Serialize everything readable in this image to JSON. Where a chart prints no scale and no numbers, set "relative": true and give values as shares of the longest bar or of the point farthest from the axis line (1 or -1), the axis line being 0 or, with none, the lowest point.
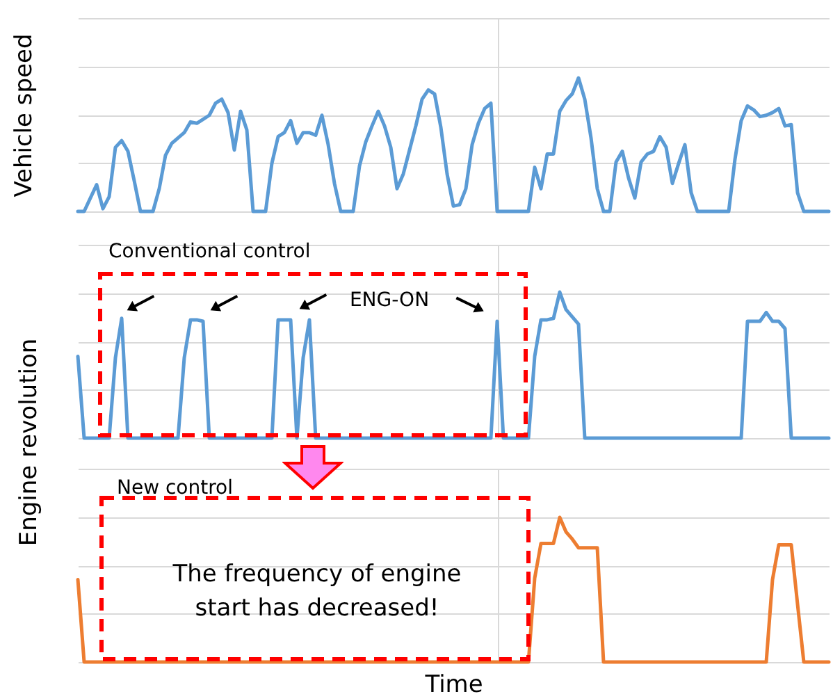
{
  "chart_data": [
    {
      "type": "line",
      "relative": true,
      "ylabel": "Vehicle speed",
      "grid": true,
      "categories": [
        null,
        null,
        null,
        null,
        null,
        null,
        null,
        null,
        null,
        null,
        null,
        null,
        null,
        null,
        null,
        null,
        null,
        null,
        null,
        null,
        null,
        null,
        null,
        null,
        null,
        null,
        null,
        null,
        null,
        null,
        null,
        null,
        null,
        null,
        null,
        null,
        null,
        null,
        null,
        null,
        null,
        null,
        null,
        null,
        null,
        null,
        null,
        null,
        null,
        null,
        null,
        null,
        null,
        null,
        null,
        null,
        null,
        null,
        null,
        null,
        null,
        null,
        null,
        null,
        null,
        null,
        null,
        null,
        null,
        null,
        null,
        null,
        null,
        null,
        null,
        null,
        null,
        null,
        null,
        null,
        null,
        null,
        null,
        null,
        null,
        null,
        null,
        null,
        null,
        null,
        null,
        null,
        null,
        null,
        null,
        null,
        null,
        null,
        null,
        null,
        null,
        null,
        null,
        null,
        null,
        null,
        null,
        null,
        null,
        null,
        null,
        null,
        null,
        null,
        null,
        null,
        null,
        null,
        null,
        null,
        null
      ],
      "series": [
        {
          "color": "#5b9bd5",
          "values": [
            0,
            0,
            0.1,
            0.2,
            0.02,
            0.11,
            0.48,
            0.53,
            0.45,
            0.23,
            0,
            0,
            0,
            0.17,
            0.42,
            0.51,
            0.55,
            0.59,
            0.67,
            0.66,
            0.69,
            0.72,
            0.81,
            0.84,
            0.74,
            0.46,
            0.75,
            0.61,
            0,
            0,
            0,
            0.36,
            0.56,
            0.59,
            0.68,
            0.51,
            0.59,
            0.59,
            0.57,
            0.72,
            0.5,
            0.21,
            0,
            0,
            0,
            0.34,
            0.52,
            0.64,
            0.75,
            0.64,
            0.48,
            0.17,
            0.28,
            0.46,
            0.64,
            0.84,
            0.91,
            0.88,
            0.63,
            0.28,
            0.04,
            0.05,
            0.17,
            0.5,
            0.66,
            0.77,
            0.81,
            0,
            0,
            0,
            0,
            0,
            0,
            0.33,
            0.17,
            0.43,
            0.43,
            0.75,
            0.83,
            0.88,
            1,
            0.84,
            0.55,
            0.17,
            0,
            0,
            0.37,
            0.45,
            0.25,
            0.1,
            0.37,
            0.43,
            0.45,
            0.56,
            0.48,
            0.21,
            0.36,
            0.5,
            0.14,
            0,
            0,
            0,
            0,
            0,
            0,
            0.39,
            0.68,
            0.79,
            0.76,
            0.71,
            0.72,
            0.74,
            0.77,
            0.64,
            0.65,
            0.14,
            0,
            0,
            0,
            0,
            0
          ]
        }
      ]
    },
    {
      "type": "line",
      "relative": true,
      "ylabel": "Engine revolution",
      "grid": true,
      "annotations": [
        "Conventional control",
        "ENG-ON"
      ],
      "categories": [
        null,
        null,
        null,
        null,
        null,
        null,
        null,
        null,
        null,
        null,
        null,
        null,
        null,
        null,
        null,
        null,
        null,
        null,
        null,
        null,
        null,
        null,
        null,
        null,
        null,
        null,
        null,
        null,
        null,
        null,
        null,
        null,
        null,
        null,
        null,
        null,
        null,
        null,
        null,
        null,
        null,
        null,
        null,
        null,
        null,
        null,
        null,
        null,
        null,
        null,
        null,
        null,
        null,
        null,
        null,
        null,
        null,
        null,
        null,
        null,
        null,
        null,
        null,
        null,
        null,
        null,
        null,
        null,
        null,
        null,
        null,
        null,
        null,
        null,
        null,
        null,
        null,
        null,
        null,
        null,
        null,
        null,
        null,
        null,
        null,
        null,
        null,
        null,
        null,
        null,
        null,
        null,
        null,
        null,
        null,
        null,
        null,
        null,
        null,
        null,
        null,
        null,
        null,
        null,
        null,
        null,
        null,
        null,
        null,
        null,
        null,
        null,
        null,
        null,
        null,
        null,
        null,
        null,
        null,
        null,
        null
      ],
      "series": [
        {
          "color": "#5b9bd5",
          "values": [
            0.56,
            0,
            0,
            0,
            0,
            0,
            0.55,
            0.82,
            0,
            0,
            0,
            0,
            0,
            0,
            0,
            0,
            0,
            0.55,
            0.81,
            0.81,
            0.8,
            0,
            0,
            0,
            0,
            0,
            0,
            0,
            0,
            0,
            0,
            0,
            0.81,
            0.81,
            0.81,
            0,
            0.55,
            0.81,
            0,
            0,
            0,
            0,
            0,
            0,
            0,
            0,
            0,
            0,
            0,
            0,
            0,
            0,
            0,
            0,
            0,
            0,
            0,
            0,
            0,
            0,
            0,
            0,
            0,
            0,
            0,
            0,
            0,
            0.8,
            0,
            0,
            0,
            0,
            0,
            0.56,
            0.81,
            0.81,
            0.82,
            1,
            0.88,
            0.83,
            0.78,
            0,
            0,
            0,
            0,
            0,
            0,
            0,
            0,
            0,
            0,
            0,
            0,
            0,
            0,
            0,
            0,
            0,
            0,
            0,
            0,
            0,
            0,
            0,
            0,
            0,
            0,
            0.8,
            0.8,
            0.8,
            0.86,
            0.8,
            0.8,
            0.75,
            0,
            0,
            0,
            0,
            0,
            0,
            0
          ]
        }
      ]
    },
    {
      "type": "line",
      "relative": true,
      "xlabel": "Time",
      "grid": true,
      "annotations": [
        "New control",
        "The frequency of engine start has decreased!"
      ],
      "categories": [
        null,
        null,
        null,
        null,
        null,
        null,
        null,
        null,
        null,
        null,
        null,
        null,
        null,
        null,
        null,
        null,
        null,
        null,
        null,
        null,
        null,
        null,
        null,
        null,
        null,
        null,
        null,
        null,
        null,
        null,
        null,
        null,
        null,
        null,
        null,
        null,
        null,
        null,
        null,
        null,
        null,
        null,
        null,
        null,
        null,
        null,
        null,
        null,
        null,
        null,
        null,
        null,
        null,
        null,
        null,
        null,
        null,
        null,
        null,
        null,
        null,
        null,
        null,
        null,
        null,
        null,
        null,
        null,
        null,
        null,
        null,
        null,
        null,
        null,
        null,
        null,
        null,
        null,
        null,
        null,
        null,
        null,
        null,
        null,
        null,
        null,
        null,
        null,
        null,
        null,
        null,
        null,
        null,
        null,
        null,
        null,
        null,
        null,
        null,
        null,
        null,
        null,
        null,
        null,
        null,
        null,
        null,
        null,
        null,
        null,
        null,
        null,
        null,
        null,
        null,
        null,
        null,
        null,
        null,
        null,
        null
      ],
      "series": [
        {
          "color": "#ed7d31",
          "values": [
            0.57,
            0,
            0,
            0,
            0,
            0,
            0,
            0,
            0,
            0,
            0,
            0,
            0,
            0,
            0,
            0,
            0,
            0,
            0,
            0,
            0,
            0,
            0,
            0,
            0,
            0,
            0,
            0,
            0,
            0,
            0,
            0,
            0,
            0,
            0,
            0,
            0,
            0,
            0,
            0,
            0,
            0,
            0,
            0,
            0,
            0,
            0,
            0,
            0,
            0,
            0,
            0,
            0,
            0,
            0,
            0,
            0,
            0,
            0,
            0,
            0,
            0,
            0,
            0,
            0,
            0,
            0,
            0,
            0,
            0,
            0,
            0,
            0,
            0.58,
            0.82,
            0.82,
            0.82,
            1,
            0.9,
            0.85,
            0.79,
            0.79,
            0.79,
            0.79,
            0,
            0,
            0,
            0,
            0,
            0,
            0,
            0,
            0,
            0,
            0,
            0,
            0,
            0,
            0,
            0,
            0,
            0,
            0,
            0,
            0,
            0,
            0,
            0,
            0,
            0,
            0,
            0.57,
            0.81,
            0.81,
            0.81,
            0.4,
            0,
            0,
            0,
            0,
            0
          ]
        }
      ]
    }
  ]
}
